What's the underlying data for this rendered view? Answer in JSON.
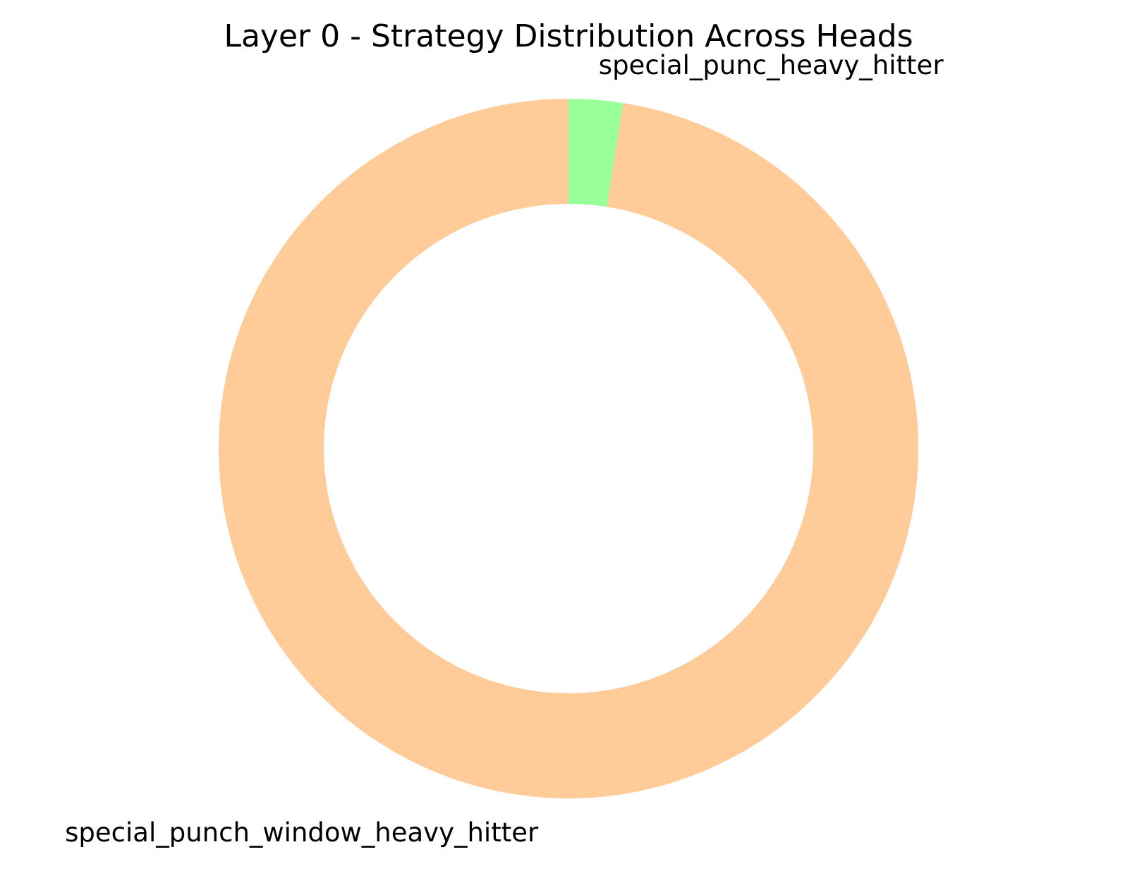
{
  "chart_data": {
    "type": "pie",
    "style": "donut",
    "title": "Layer 0 - Strategy Distribution Across Heads",
    "start_angle_deg": 90,
    "direction": "clockwise",
    "categories": [
      "special_punc_heavy_hitter",
      "special_punch_window_heavy_hitter"
    ],
    "values": [
      2.5,
      97.5
    ],
    "colors": [
      "#99ff99",
      "#ffcc99"
    ],
    "legend": "none"
  }
}
